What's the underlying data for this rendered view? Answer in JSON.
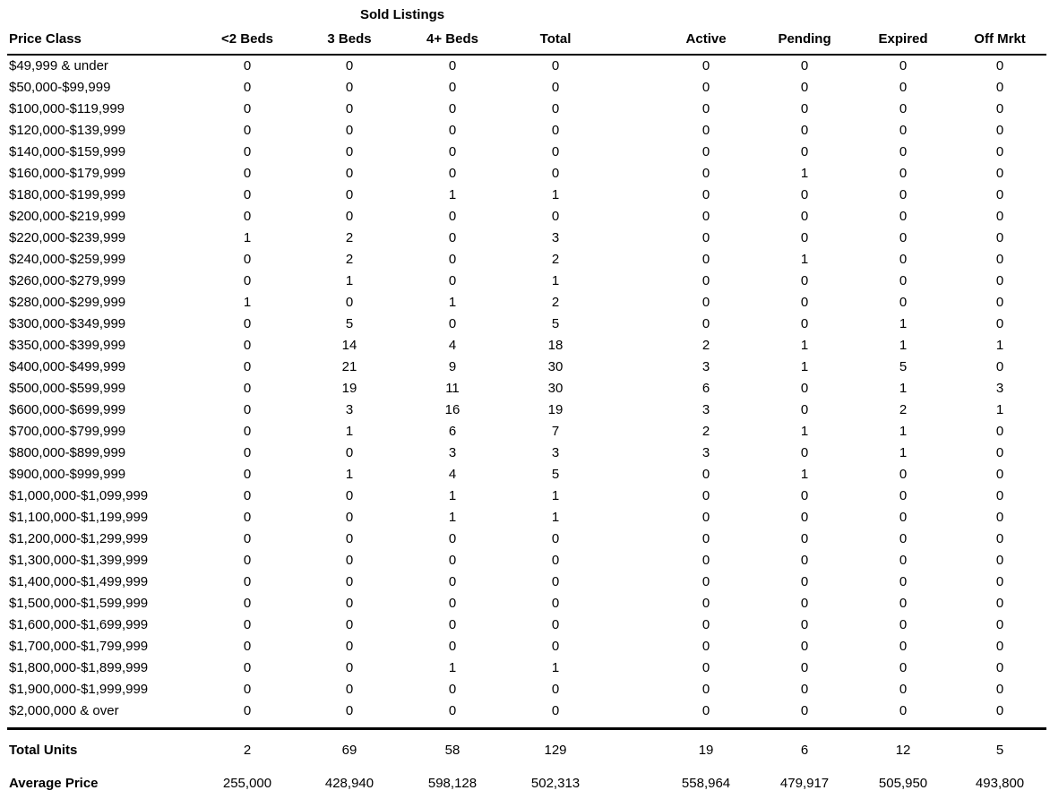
{
  "table": {
    "title": "Sold Listings",
    "columns": [
      "Price Class",
      "<2 Beds",
      "3 Beds",
      "4+ Beds",
      "Total",
      "Active",
      "Pending",
      "Expired",
      "Off Mrkt"
    ],
    "rows": [
      {
        "price_class": "$49,999 & under",
        "values": [
          0,
          0,
          0,
          0,
          0,
          0,
          0,
          0
        ]
      },
      {
        "price_class": "$50,000-$99,999",
        "values": [
          0,
          0,
          0,
          0,
          0,
          0,
          0,
          0
        ]
      },
      {
        "price_class": "$100,000-$119,999",
        "values": [
          0,
          0,
          0,
          0,
          0,
          0,
          0,
          0
        ]
      },
      {
        "price_class": "$120,000-$139,999",
        "values": [
          0,
          0,
          0,
          0,
          0,
          0,
          0,
          0
        ]
      },
      {
        "price_class": "$140,000-$159,999",
        "values": [
          0,
          0,
          0,
          0,
          0,
          0,
          0,
          0
        ]
      },
      {
        "price_class": "$160,000-$179,999",
        "values": [
          0,
          0,
          0,
          0,
          0,
          1,
          0,
          0
        ]
      },
      {
        "price_class": "$180,000-$199,999",
        "values": [
          0,
          0,
          1,
          1,
          0,
          0,
          0,
          0
        ]
      },
      {
        "price_class": "$200,000-$219,999",
        "values": [
          0,
          0,
          0,
          0,
          0,
          0,
          0,
          0
        ]
      },
      {
        "price_class": "$220,000-$239,999",
        "values": [
          1,
          2,
          0,
          3,
          0,
          0,
          0,
          0
        ]
      },
      {
        "price_class": "$240,000-$259,999",
        "values": [
          0,
          2,
          0,
          2,
          0,
          1,
          0,
          0
        ]
      },
      {
        "price_class": "$260,000-$279,999",
        "values": [
          0,
          1,
          0,
          1,
          0,
          0,
          0,
          0
        ]
      },
      {
        "price_class": "$280,000-$299,999",
        "values": [
          1,
          0,
          1,
          2,
          0,
          0,
          0,
          0
        ]
      },
      {
        "price_class": "$300,000-$349,999",
        "values": [
          0,
          5,
          0,
          5,
          0,
          0,
          1,
          0
        ]
      },
      {
        "price_class": "$350,000-$399,999",
        "values": [
          0,
          14,
          4,
          18,
          2,
          1,
          1,
          1
        ]
      },
      {
        "price_class": "$400,000-$499,999",
        "values": [
          0,
          21,
          9,
          30,
          3,
          1,
          5,
          0
        ]
      },
      {
        "price_class": "$500,000-$599,999",
        "values": [
          0,
          19,
          11,
          30,
          6,
          0,
          1,
          3
        ]
      },
      {
        "price_class": "$600,000-$699,999",
        "values": [
          0,
          3,
          16,
          19,
          3,
          0,
          2,
          1
        ]
      },
      {
        "price_class": "$700,000-$799,999",
        "values": [
          0,
          1,
          6,
          7,
          2,
          1,
          1,
          0
        ]
      },
      {
        "price_class": "$800,000-$899,999",
        "values": [
          0,
          0,
          3,
          3,
          3,
          0,
          1,
          0
        ]
      },
      {
        "price_class": "$900,000-$999,999",
        "values": [
          0,
          1,
          4,
          5,
          0,
          1,
          0,
          0
        ]
      },
      {
        "price_class": "$1,000,000-$1,099,999",
        "values": [
          0,
          0,
          1,
          1,
          0,
          0,
          0,
          0
        ]
      },
      {
        "price_class": "$1,100,000-$1,199,999",
        "values": [
          0,
          0,
          1,
          1,
          0,
          0,
          0,
          0
        ]
      },
      {
        "price_class": "$1,200,000-$1,299,999",
        "values": [
          0,
          0,
          0,
          0,
          0,
          0,
          0,
          0
        ]
      },
      {
        "price_class": "$1,300,000-$1,399,999",
        "values": [
          0,
          0,
          0,
          0,
          0,
          0,
          0,
          0
        ]
      },
      {
        "price_class": "$1,400,000-$1,499,999",
        "values": [
          0,
          0,
          0,
          0,
          0,
          0,
          0,
          0
        ]
      },
      {
        "price_class": "$1,500,000-$1,599,999",
        "values": [
          0,
          0,
          0,
          0,
          0,
          0,
          0,
          0
        ]
      },
      {
        "price_class": "$1,600,000-$1,699,999",
        "values": [
          0,
          0,
          0,
          0,
          0,
          0,
          0,
          0
        ]
      },
      {
        "price_class": "$1,700,000-$1,799,999",
        "values": [
          0,
          0,
          0,
          0,
          0,
          0,
          0,
          0
        ]
      },
      {
        "price_class": "$1,800,000-$1,899,999",
        "values": [
          0,
          0,
          1,
          1,
          0,
          0,
          0,
          0
        ]
      },
      {
        "price_class": "$1,900,000-$1,999,999",
        "values": [
          0,
          0,
          0,
          0,
          0,
          0,
          0,
          0
        ]
      },
      {
        "price_class": "$2,000,000 & over",
        "values": [
          0,
          0,
          0,
          0,
          0,
          0,
          0,
          0
        ]
      }
    ],
    "footer": {
      "total_units_label": "Total Units",
      "total_units": [
        "2",
        "69",
        "58",
        "129",
        "19",
        "6",
        "12",
        "5"
      ],
      "average_price_label": "Average Price",
      "average_price": [
        "255,000",
        "428,940",
        "598,128",
        "502,313",
        "558,964",
        "479,917",
        "505,950",
        "493,800"
      ]
    }
  }
}
